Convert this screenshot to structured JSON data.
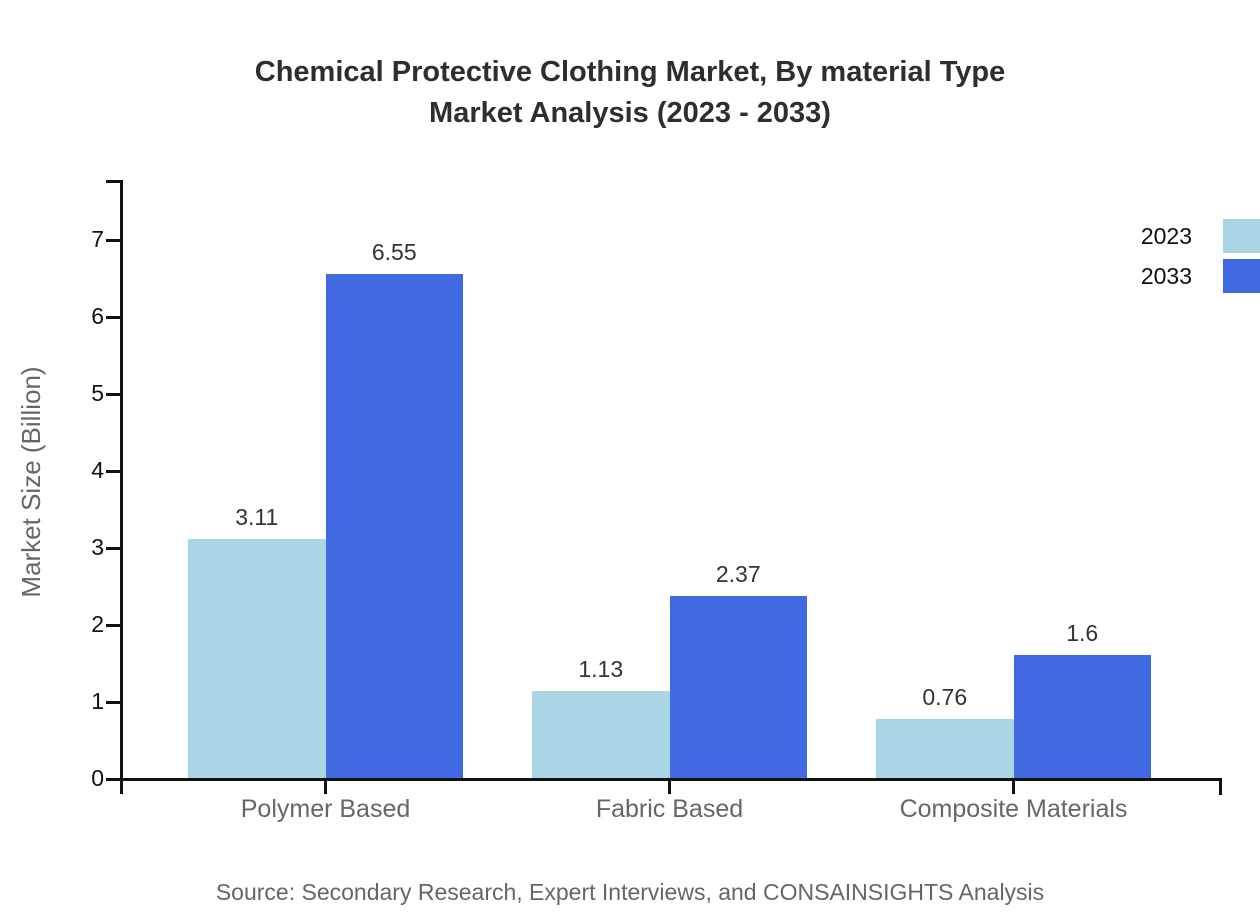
{
  "title": {
    "line1": "Chemical Protective Clothing Market, By material Type",
    "line2": "Market Analysis (2023 - 2033)"
  },
  "source": "Source: Secondary Research, Expert Interviews, and CONSAINSIGHTS Analysis",
  "colors": {
    "series_2023": "#A9D5E4",
    "series_2033": "#4169E1",
    "axis": "#111111",
    "title_text": "#2e2e2e",
    "muted_text": "#666666",
    "value_label_text": "#333333"
  },
  "chart_data": {
    "type": "bar",
    "title": "Chemical Protective Clothing Market, By material Type Market Analysis (2023 - 2033)",
    "categories": [
      "Polymer Based",
      "Fabric Based",
      "Composite Materials"
    ],
    "series": [
      {
        "name": "2023",
        "color": "#A9D5E4",
        "values": [
          3.11,
          1.13,
          0.76
        ],
        "labels": [
          "3.11",
          "1.13",
          "0.76"
        ]
      },
      {
        "name": "2033",
        "color": "#4169E1",
        "values": [
          6.55,
          2.37,
          1.6
        ],
        "labels": [
          "6.55",
          "2.37",
          "1.6"
        ]
      }
    ],
    "xlabel": "",
    "ylabel": "Market Size (Billion)",
    "ylim": [
      0,
      7
    ],
    "ytick_step": 1,
    "yticks": [
      0,
      1,
      2,
      3,
      4,
      5,
      6,
      7
    ],
    "grid": false,
    "legend_position": "top-right"
  }
}
